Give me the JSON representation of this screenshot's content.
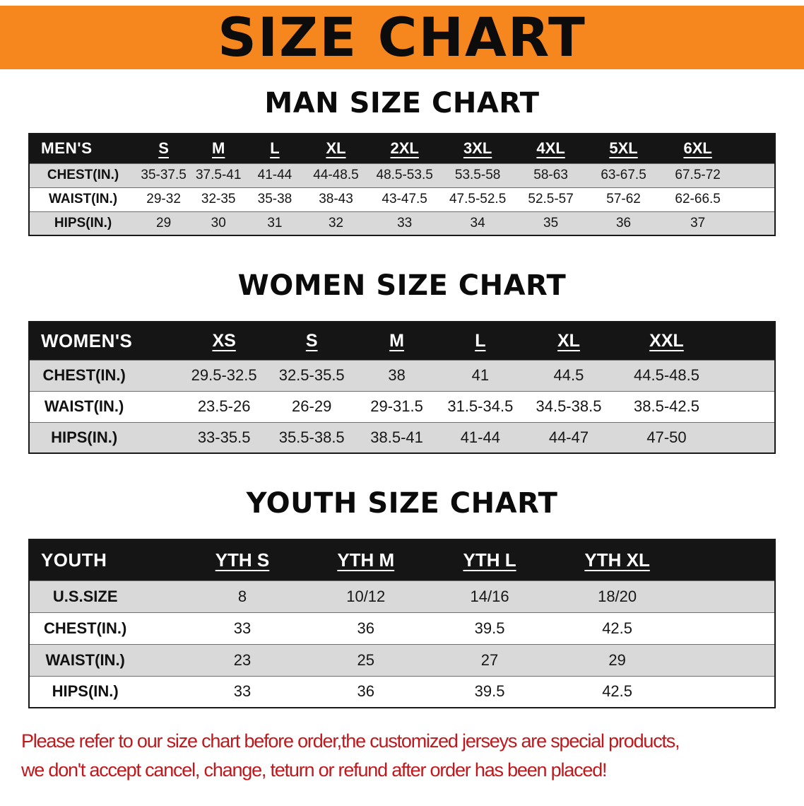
{
  "colors": {
    "banner_bg": "#f6871e",
    "banner_text": "#0c0c0c",
    "table_header_bg": "#151515",
    "table_header_text": "#ffffff",
    "row_alt_bg": "#d9d9d9",
    "notice_text": "#c0181c"
  },
  "banner": {
    "title": "SIZE CHART"
  },
  "sections": [
    {
      "name": "man-size-chart",
      "heading": "MAN SIZE CHART",
      "table": {
        "header": [
          "MEN'S",
          "S",
          "M",
          "L",
          "XL",
          "2XL",
          "3XL",
          "4XL",
          "5XL",
          "6XL"
        ],
        "rows": [
          [
            "CHEST(IN.)",
            "35-37.5",
            "37.5-41",
            "41-44",
            "44-48.5",
            "48.5-53.5",
            "53.5-58",
            "58-63",
            "63-67.5",
            "67.5-72"
          ],
          [
            "WAIST(IN.)",
            "29-32",
            "32-35",
            "35-38",
            "38-43",
            "43-47.5",
            "47.5-52.5",
            "52.5-57",
            "57-62",
            "62-66.5"
          ],
          [
            "HIPS(IN.)",
            "29",
            "30",
            "31",
            "32",
            "33",
            "34",
            "35",
            "36",
            "37"
          ]
        ]
      }
    },
    {
      "name": "women-size-chart",
      "heading": "WOMEN SIZE CHART",
      "table": {
        "header": [
          "WOMEN'S",
          "XS",
          "S",
          "M",
          "L",
          "XL",
          "XXL"
        ],
        "rows": [
          [
            "CHEST(IN.)",
            "29.5-32.5",
            "32.5-35.5",
            "38",
            "41",
            "44.5",
            "44.5-48.5"
          ],
          [
            "WAIST(IN.)",
            "23.5-26",
            "26-29",
            "29-31.5",
            "31.5-34.5",
            "34.5-38.5",
            "38.5-42.5"
          ],
          [
            "HIPS(IN.)",
            "33-35.5",
            "35.5-38.5",
            "38.5-41",
            "41-44",
            "44-47",
            "47-50"
          ]
        ]
      }
    },
    {
      "name": "youth-size-chart",
      "heading": "YOUTH SIZE CHART",
      "table": {
        "header": [
          "YOUTH",
          "YTH S",
          "YTH M",
          "YTH L",
          "YTH XL"
        ],
        "rows": [
          [
            "U.S.SIZE",
            "8",
            "10/12",
            "14/16",
            "18/20"
          ],
          [
            "CHEST(IN.)",
            "33",
            "36",
            "39.5",
            "42.5"
          ],
          [
            "WAIST(IN.)",
            "23",
            "25",
            "27",
            "29"
          ],
          [
            "HIPS(IN.)",
            "33",
            "36",
            "39.5",
            "42.5"
          ]
        ]
      }
    }
  ],
  "notice": {
    "line1": "Please refer to our size chart before order,the customized jerseys are special products,",
    "line2": "we don't accept cancel, change, teturn or refund after order has been placed!"
  }
}
